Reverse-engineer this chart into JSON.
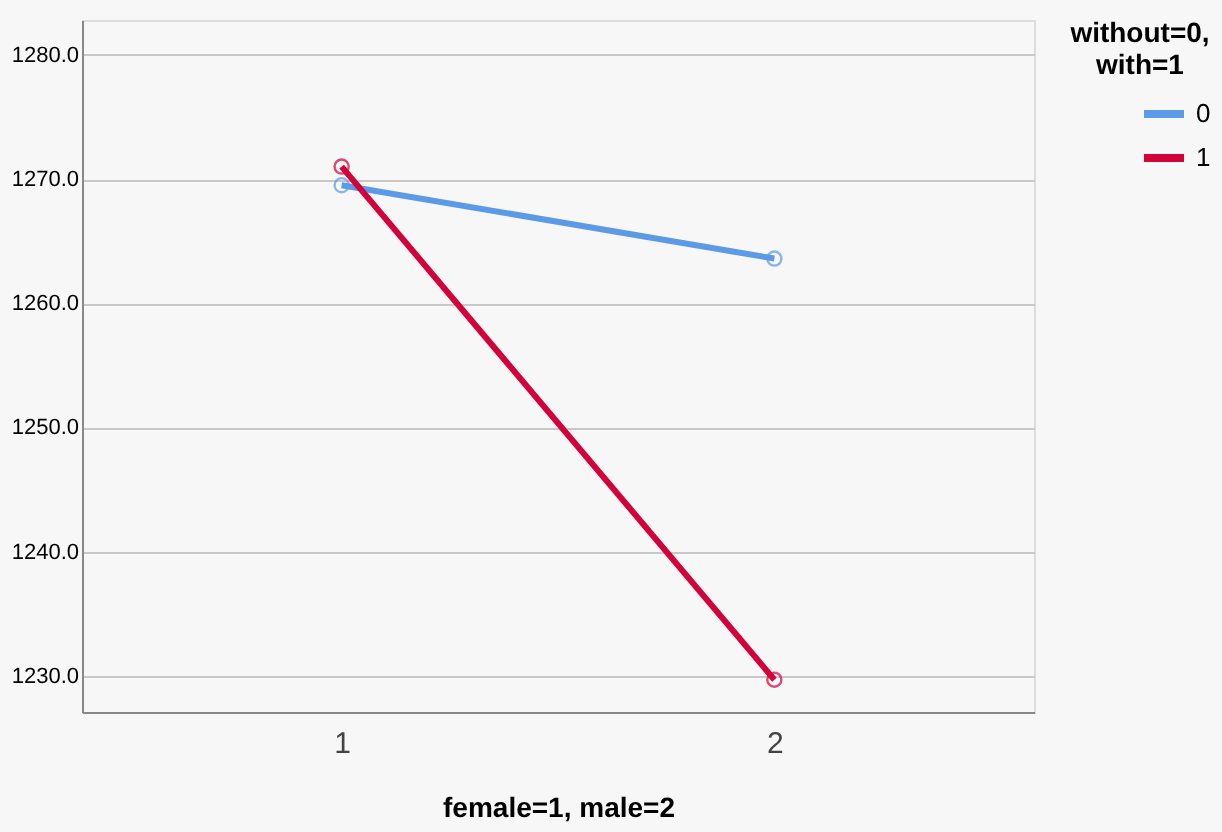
{
  "chart_data": {
    "type": "line",
    "xlabel": "female=1, male=2",
    "legend_title": "without=0, with=1",
    "categories": [
      "1",
      "2"
    ],
    "series": [
      {
        "name": "0",
        "color": "#5b9ae6",
        "values": [
          1269.5,
          1263.6
        ]
      },
      {
        "name": "1",
        "color": "#d3003a",
        "values": [
          1271.0,
          1229.7
        ]
      }
    ],
    "ylim": [
      1227.1,
      1282.8
    ],
    "yticks": [
      {
        "value": 1230,
        "label": "1230.0"
      },
      {
        "value": 1240,
        "label": "1240.0"
      },
      {
        "value": 1250,
        "label": "1250.0"
      },
      {
        "value": 1260,
        "label": "1260.0"
      },
      {
        "value": 1270,
        "label": "1270.0"
      },
      {
        "value": 1280,
        "label": "1280.0"
      }
    ],
    "grid": "y",
    "legend": "top right",
    "marker": "circle",
    "line_style": "solid"
  }
}
